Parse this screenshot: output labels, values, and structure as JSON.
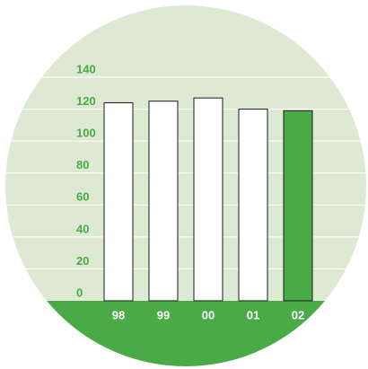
{
  "chart_data": {
    "type": "bar",
    "categories": [
      "98",
      "99",
      "00",
      "01",
      "02"
    ],
    "values": [
      124,
      125,
      127,
      120,
      119
    ],
    "colors": [
      "#ffffff",
      "#ffffff",
      "#ffffff",
      "#ffffff",
      "#4aaa45"
    ],
    "ylim": [
      0,
      140
    ],
    "yticks": [
      0,
      20,
      40,
      60,
      80,
      100,
      120,
      140
    ],
    "grid": true
  }
}
